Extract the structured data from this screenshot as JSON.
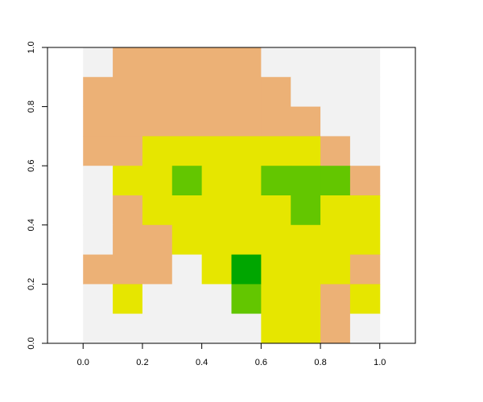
{
  "chart_data": {
    "type": "heatmap",
    "title": "",
    "xlabel": "",
    "ylabel": "",
    "xlim": [
      -0.12,
      1.12
    ],
    "ylim": [
      0,
      1
    ],
    "x_ticks": [
      "0.0",
      "0.2",
      "0.4",
      "0.6",
      "0.8",
      "1.0"
    ],
    "y_ticks": [
      "0.0",
      "0.2",
      "0.4",
      "0.6",
      "0.8",
      "1.0"
    ],
    "cell_extent": {
      "x": [
        0,
        1
      ],
      "y": [
        0,
        1
      ]
    },
    "grid": false,
    "palette": [
      "#F2F2F2",
      "#ECB176",
      "#E6E600",
      "#63C600",
      "#00A600"
    ],
    "rows": [
      [
        0,
        1,
        1,
        1,
        1,
        1,
        0,
        0,
        0,
        0
      ],
      [
        1,
        1,
        1,
        1,
        1,
        1,
        1,
        0,
        0,
        0
      ],
      [
        1,
        1,
        1,
        1,
        1,
        1,
        1,
        1,
        0,
        0
      ],
      [
        1,
        1,
        2,
        2,
        2,
        2,
        2,
        2,
        1,
        0
      ],
      [
        0,
        2,
        2,
        3,
        2,
        2,
        3,
        3,
        3,
        1
      ],
      [
        0,
        1,
        2,
        2,
        2,
        2,
        2,
        3,
        2,
        2
      ],
      [
        0,
        1,
        1,
        2,
        2,
        2,
        2,
        2,
        2,
        2
      ],
      [
        1,
        1,
        1,
        0,
        2,
        4,
        2,
        2,
        2,
        1
      ],
      [
        0,
        2,
        0,
        0,
        0,
        3,
        2,
        2,
        1,
        2
      ],
      [
        0,
        0,
        0,
        0,
        0,
        0,
        2,
        2,
        1,
        0
      ]
    ]
  }
}
